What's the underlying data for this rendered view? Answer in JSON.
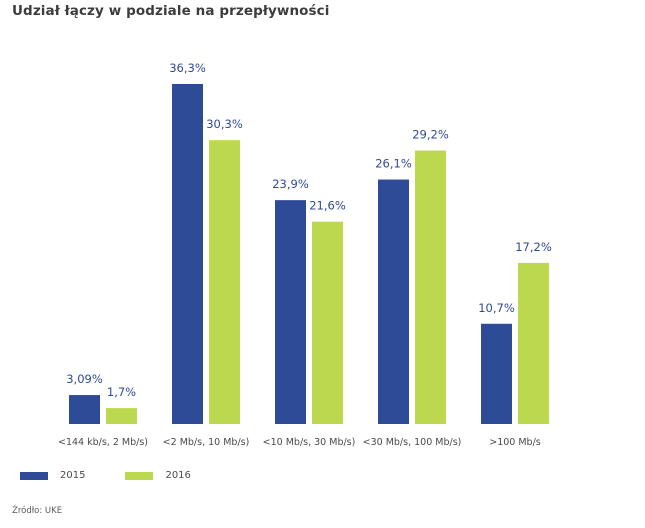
{
  "chart_data": {
    "type": "bar",
    "title": "Udział łączy w podziale na przepływności",
    "categories": [
      "<144 kb/s, 2 Mb/s)",
      "<2 Mb/s, 10 Mb/s)",
      "<10 Mb/s, 30 Mb/s)",
      "<30 Mb/s, 100 Mb/s)",
      ">100 Mb/s"
    ],
    "series": [
      {
        "name": "2015",
        "color": "#2e4b97",
        "values": [
          3.09,
          36.3,
          23.9,
          26.1,
          10.7
        ],
        "labels": [
          "3,09%",
          "36,3%",
          "23,9%",
          "26,1%",
          "10,7%"
        ]
      },
      {
        "name": "2016",
        "color": "#bcd84f",
        "values": [
          1.7,
          30.3,
          21.6,
          29.2,
          17.2
        ],
        "labels": [
          "1,7%",
          "30,3%",
          "21,6%",
          "29,2%",
          "17,2%"
        ]
      }
    ],
    "xlabel": "",
    "ylabel": "",
    "ylim": [
      0,
      36.3
    ],
    "grid": false,
    "legend": "bottom-left"
  },
  "source": "Źródło: UKE"
}
